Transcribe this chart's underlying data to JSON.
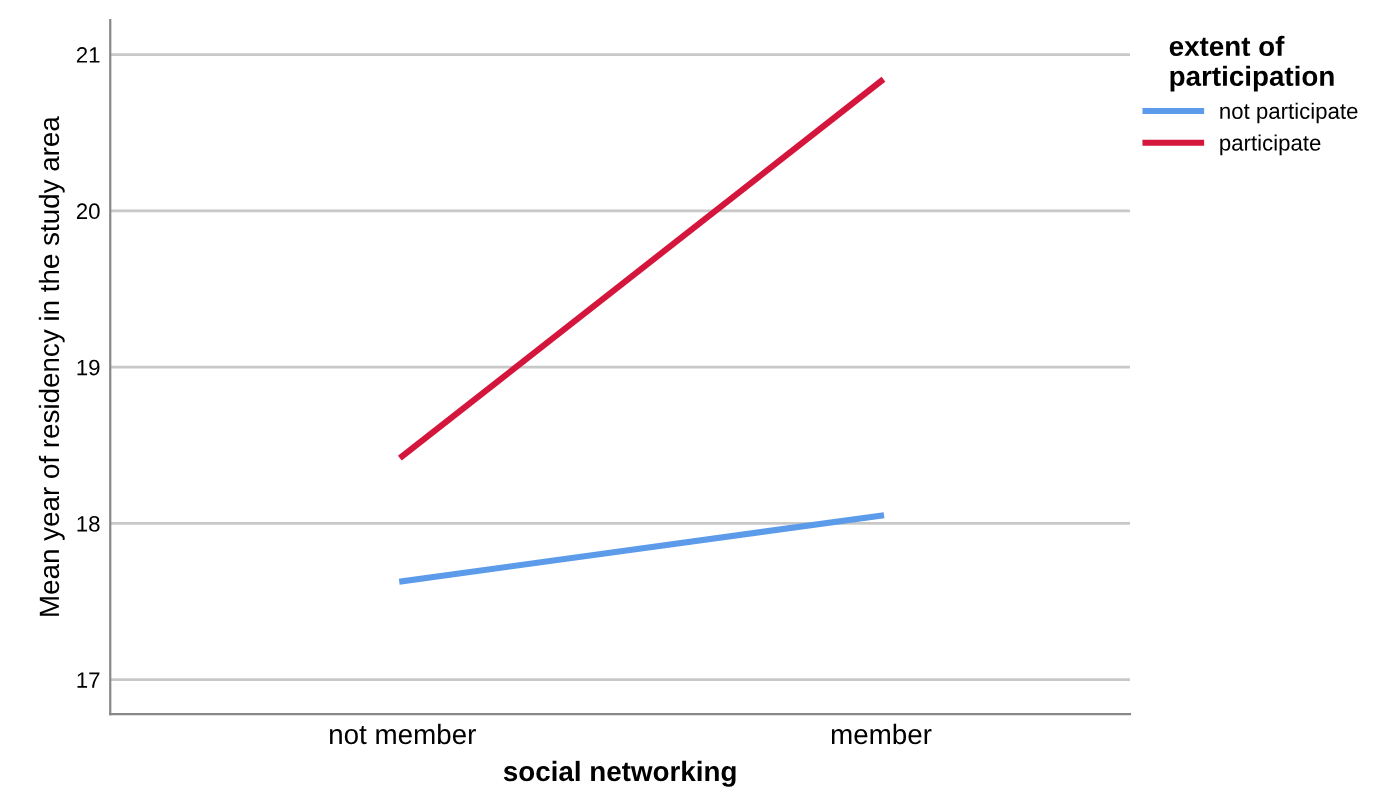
{
  "chart_data": {
    "type": "line",
    "xlabel": "social networking",
    "ylabel": "Mean year of residency in the study area",
    "legend_title": "extent of\nparticipation",
    "categories": [
      "not member",
      "member"
    ],
    "series": [
      {
        "name": "not participate",
        "color": "#5b9bea",
        "values": [
          17.63,
          18.05
        ]
      },
      {
        "name": "participate",
        "color": "#d4163c",
        "values": [
          18.43,
          20.83
        ]
      }
    ],
    "ylim": [
      16.78,
      21.22
    ],
    "yticks": [
      17,
      18,
      19,
      20,
      21
    ],
    "grid": "y",
    "legend": "top right",
    "marker": "none",
    "line_style": "solid"
  }
}
